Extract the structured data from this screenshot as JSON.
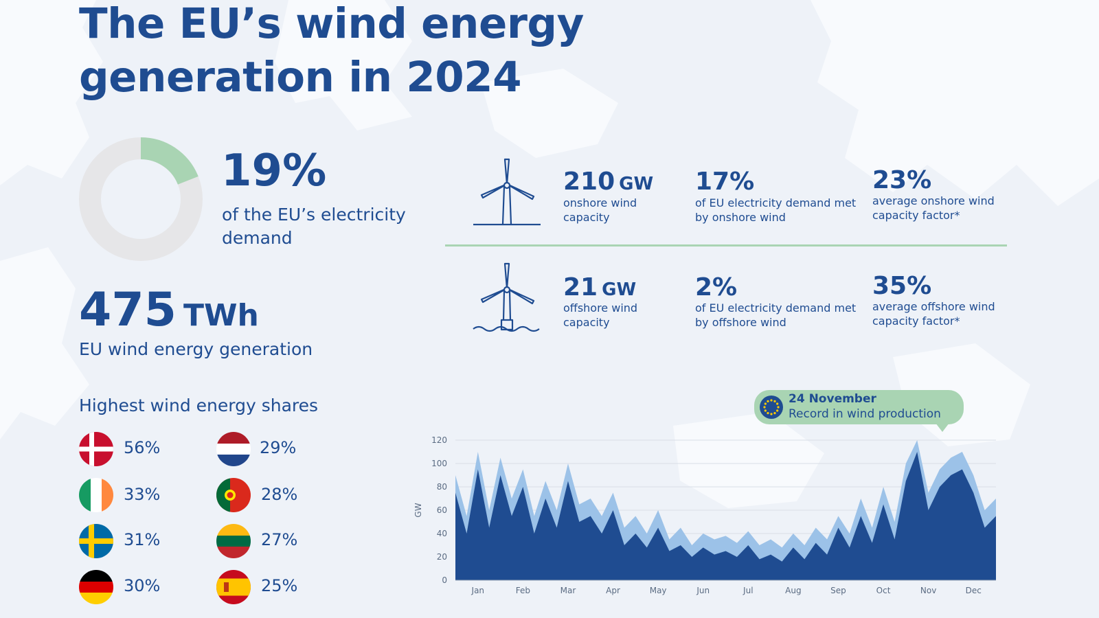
{
  "header": {
    "title_line1": "The EU’s wind energy",
    "title_line2": "generation in 2024"
  },
  "share_of_demand": {
    "value_label": "19%",
    "value": 19,
    "description": "of the EU’s electricity demand",
    "colors": {
      "filled": "#a9d4b3",
      "remaining": "#e6e6e8"
    }
  },
  "generation": {
    "value": "475",
    "unit": "TWh",
    "description": "EU wind energy generation"
  },
  "highest_shares": {
    "title": "Highest wind energy shares",
    "items": [
      {
        "country_flag": "denmark-flag",
        "value": "56%"
      },
      {
        "country_flag": "netherlands-flag",
        "value": "29%"
      },
      {
        "country_flag": "ireland-flag",
        "value": "33%"
      },
      {
        "country_flag": "portugal-flag",
        "value": "28%"
      },
      {
        "country_flag": "sweden-flag",
        "value": "31%"
      },
      {
        "country_flag": "lithuania-flag",
        "value": "27%"
      },
      {
        "country_flag": "germany-flag",
        "value": "30%"
      },
      {
        "country_flag": "spain-flag",
        "value": "25%"
      }
    ]
  },
  "onshore": {
    "icon": "onshore-wind-turbine-icon",
    "capacity_value": "210",
    "capacity_unit": "GW",
    "capacity_desc": "onshore wind capacity",
    "demand_value": "17%",
    "demand_desc": "of EU electricity demand met by onshore wind",
    "factor_value": "23%",
    "factor_desc": "average onshore wind capacity factor*"
  },
  "offshore": {
    "icon": "offshore-wind-turbine-icon",
    "capacity_value": "21",
    "capacity_unit": "GW",
    "capacity_desc": "offshore wind capacity",
    "demand_value": "2%",
    "demand_desc": "of EU electricity demand met by offshore wind",
    "factor_value": "35%",
    "factor_desc": "average offshore wind capacity factor*"
  },
  "callout": {
    "icon": "eu-flag-icon",
    "date": "24 November",
    "text": "Record in wind production"
  },
  "chart_data": {
    "type": "area",
    "title": "",
    "ylabel": "GW",
    "xlabel": "",
    "ylim": [
      0,
      120
    ],
    "yticks": [
      0,
      20,
      40,
      60,
      80,
      100,
      120
    ],
    "categories": [
      "Jan",
      "Feb",
      "Mar",
      "Apr",
      "May",
      "Jun",
      "Jul",
      "Aug",
      "Sep",
      "Oct",
      "Nov",
      "Dec"
    ],
    "x": [
      0,
      0.25,
      0.5,
      0.75,
      1,
      1.25,
      1.5,
      1.75,
      2,
      2.25,
      2.5,
      2.75,
      3,
      3.25,
      3.5,
      3.75,
      4,
      4.25,
      4.5,
      4.75,
      5,
      5.25,
      5.5,
      5.75,
      6,
      6.25,
      6.5,
      6.75,
      7,
      7.25,
      7.5,
      7.75,
      8,
      8.25,
      8.5,
      8.75,
      9,
      9.25,
      9.5,
      9.75,
      10,
      10.25,
      10.5,
      10.75,
      11,
      11.25,
      11.5,
      11.75,
      12
    ],
    "grid": true,
    "series": [
      {
        "values": [
          90,
          55,
          110,
          60,
          105,
          70,
          95,
          55,
          85,
          60,
          100,
          65,
          70,
          55,
          75,
          45,
          55,
          40,
          60,
          35,
          45,
          30,
          40,
          35,
          38,
          32,
          42,
          30,
          35,
          28,
          40,
          30,
          45,
          35,
          55,
          40,
          70,
          45,
          80,
          50,
          100,
          120,
          75,
          95,
          105,
          110,
          90,
          60,
          70
        ],
        "color": "#9cc2e8"
      },
      {
        "values": [
          75,
          40,
          95,
          45,
          90,
          55,
          80,
          40,
          70,
          45,
          85,
          50,
          55,
          40,
          60,
          30,
          40,
          28,
          45,
          25,
          30,
          20,
          28,
          22,
          25,
          20,
          30,
          18,
          22,
          16,
          28,
          18,
          32,
          22,
          45,
          28,
          55,
          32,
          65,
          35,
          85,
          110,
          60,
          80,
          90,
          95,
          75,
          45,
          55
        ],
        "color": "#1f4c91"
      }
    ]
  }
}
